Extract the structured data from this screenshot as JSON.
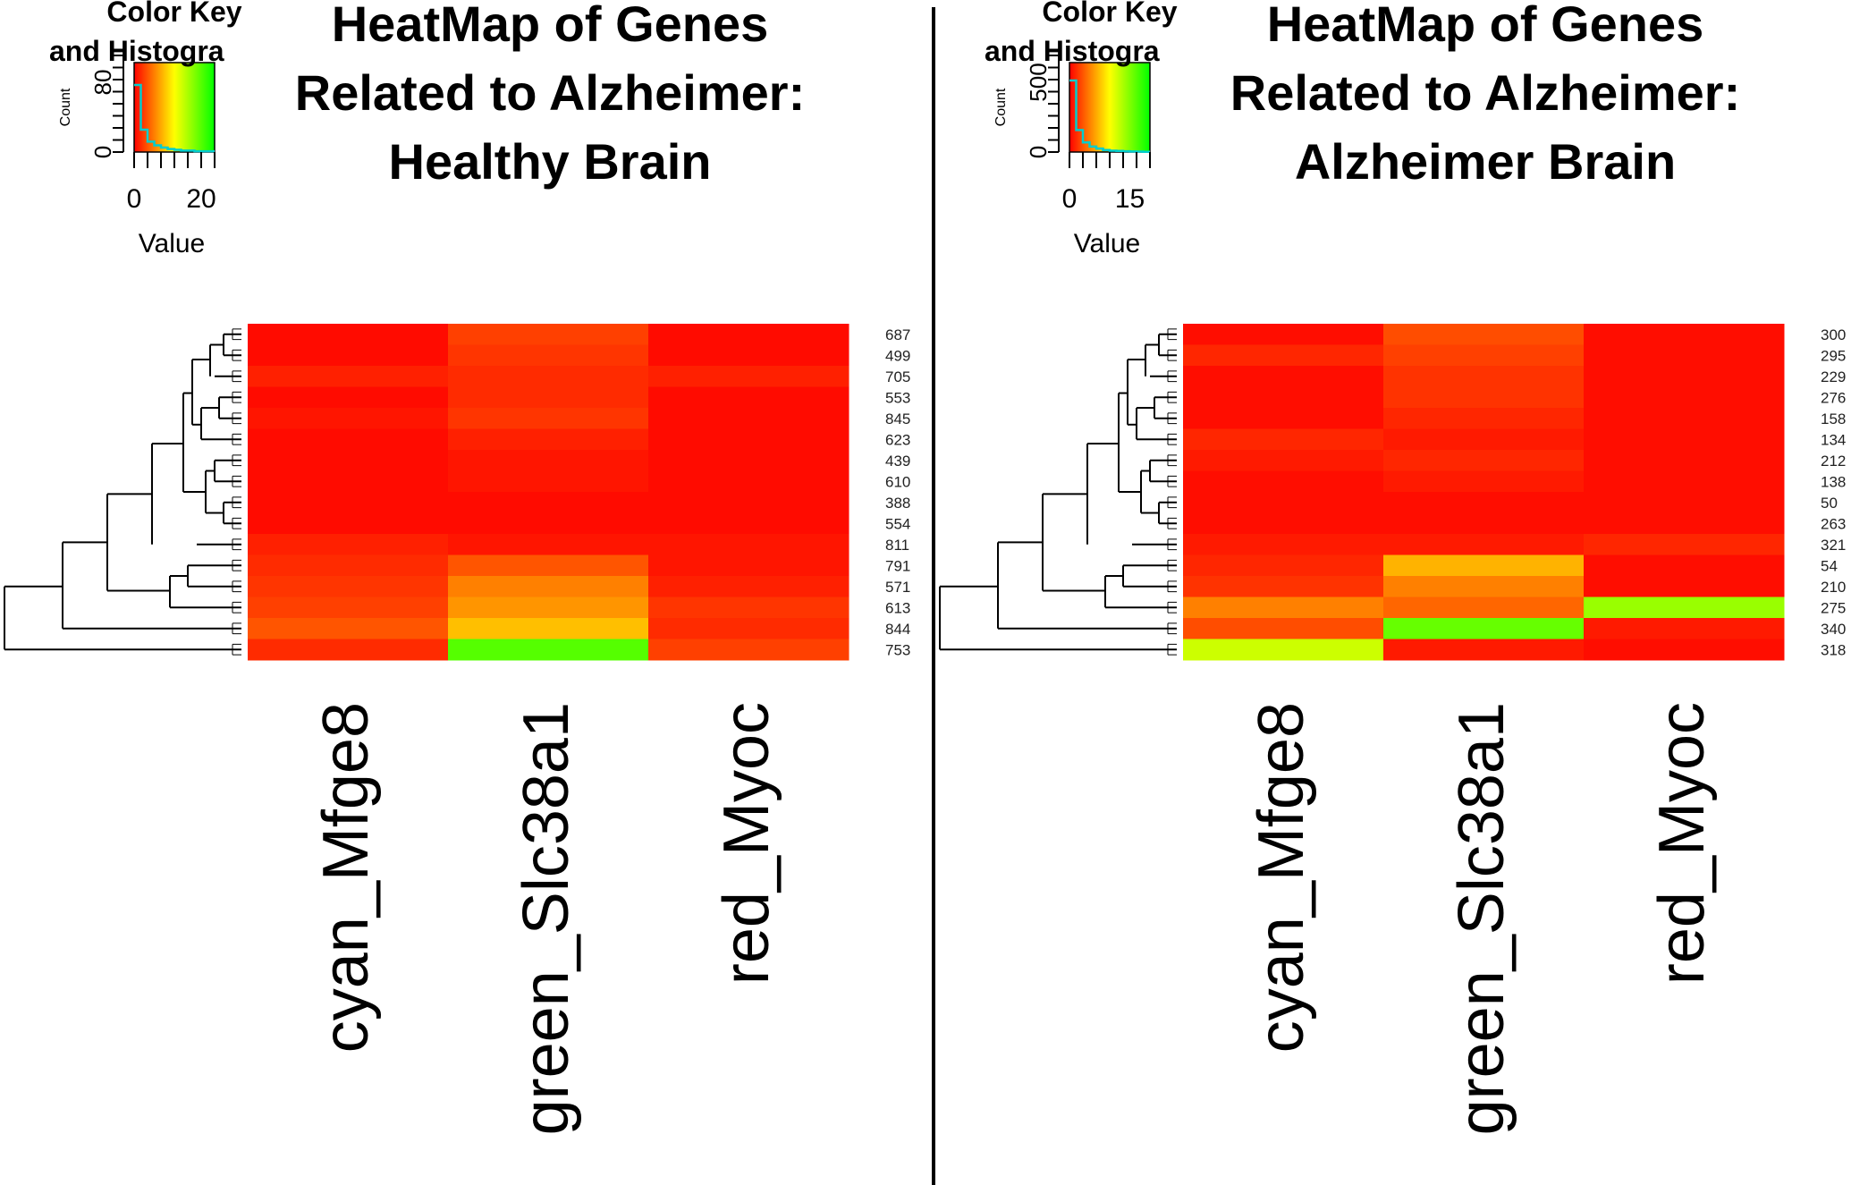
{
  "colors": {
    "low": "#ff0000",
    "mid": "#ffff00",
    "high": "#00ff00",
    "hist": "#00cdcd",
    "divider": "#000000"
  },
  "panels": [
    {
      "color_key": {
        "title_line1": "Color Key",
        "title_line2": "and Histogra",
        "count_label": "Count",
        "y_ticks": [
          "0",
          "80"
        ],
        "x_ticks": [
          "0",
          "20"
        ],
        "x_tick_values": [
          0,
          20
        ],
        "value_label": "Value",
        "value_range": [
          0,
          24
        ],
        "hist_counts": [
          90,
          30,
          14,
          9,
          6,
          4,
          3,
          2,
          2,
          1,
          1,
          1
        ],
        "count_max": 120
      },
      "title": [
        "HeatMap of Genes",
        "Related to Alzheimer:",
        "Healthy Brain"
      ],
      "columns": [
        "cyan_Mfge8",
        "green_Slc38a1",
        "red_Myoc"
      ],
      "row_labels": [
        "687",
        "499",
        "705",
        "553",
        "845",
        "623",
        "439",
        "610",
        "388",
        "554",
        "811",
        "791",
        "571",
        "613",
        "844",
        "753"
      ]
    },
    {
      "color_key": {
        "title_line1": "Color Key",
        "title_line2": "and Histogra",
        "count_label": "Count",
        "y_ticks": [
          "0",
          "500"
        ],
        "x_ticks": [
          "0",
          "15"
        ],
        "x_tick_values": [
          0,
          15
        ],
        "value_label": "Value",
        "value_range": [
          0,
          20
        ],
        "hist_counts": [
          520,
          160,
          70,
          40,
          25,
          15,
          10,
          8,
          6,
          4,
          3,
          2
        ],
        "count_max": 650
      },
      "title": [
        "HeatMap of Genes",
        "Related to Alzheimer:",
        "Alzheimer Brain"
      ],
      "columns": [
        "cyan_Mfge8",
        "green_Slc38a1",
        "red_Myoc"
      ],
      "row_labels": [
        "300",
        "295",
        "229",
        "276",
        "158",
        "134",
        "212",
        "138",
        "50",
        "263",
        "321",
        "54",
        "210",
        "275",
        "340",
        "318"
      ]
    }
  ],
  "chart_data": [
    {
      "type": "heatmap",
      "title": "HeatMap of Genes Related to Alzheimer: Healthy Brain",
      "columns": [
        "cyan_Mfge8",
        "green_Slc38a1",
        "red_Myoc"
      ],
      "row_labels": [
        "687",
        "499",
        "705",
        "553",
        "845",
        "623",
        "439",
        "610",
        "388",
        "554",
        "811",
        "791",
        "571",
        "613",
        "844",
        "753"
      ],
      "value_range": [
        0,
        24
      ],
      "values": [
        [
          0.5,
          3.0,
          0.5
        ],
        [
          0.5,
          2.5,
          0.5
        ],
        [
          1.5,
          2.0,
          1.5
        ],
        [
          0.5,
          2.0,
          0.5
        ],
        [
          1.0,
          2.5,
          0.5
        ],
        [
          0.5,
          1.5,
          0.5
        ],
        [
          0.5,
          1.0,
          0.5
        ],
        [
          0.5,
          1.0,
          0.5
        ],
        [
          0.5,
          0.5,
          0.5
        ],
        [
          0.5,
          0.5,
          0.5
        ],
        [
          1.5,
          1.0,
          1.0
        ],
        [
          2.0,
          4.0,
          1.0
        ],
        [
          2.5,
          6.0,
          1.5
        ],
        [
          3.0,
          7.0,
          2.5
        ],
        [
          4.0,
          9.0,
          2.0
        ],
        [
          2.0,
          20.0,
          3.0
        ]
      ]
    },
    {
      "type": "heatmap",
      "title": "HeatMap of Genes Related to Alzheimer: Alzheimer Brain",
      "columns": [
        "cyan_Mfge8",
        "green_Slc38a1",
        "red_Myoc"
      ],
      "row_labels": [
        "300",
        "295",
        "229",
        "276",
        "158",
        "134",
        "212",
        "138",
        "50",
        "263",
        "321",
        "54",
        "210",
        "275",
        "340",
        "318"
      ],
      "value_range": [
        0,
        20
      ],
      "values": [
        [
          0.5,
          3.0,
          0.5
        ],
        [
          1.5,
          2.5,
          0.5
        ],
        [
          0.5,
          2.0,
          0.5
        ],
        [
          0.5,
          2.0,
          0.5
        ],
        [
          0.5,
          1.5,
          0.5
        ],
        [
          1.5,
          1.0,
          0.5
        ],
        [
          1.0,
          1.5,
          0.5
        ],
        [
          0.5,
          1.0,
          0.5
        ],
        [
          0.5,
          0.5,
          0.5
        ],
        [
          0.5,
          0.5,
          0.5
        ],
        [
          1.0,
          1.0,
          1.5
        ],
        [
          1.5,
          7.0,
          0.5
        ],
        [
          2.0,
          5.0,
          0.5
        ],
        [
          5.0,
          4.0,
          14.0
        ],
        [
          3.0,
          16.0,
          1.0
        ],
        [
          12.0,
          1.0,
          0.5
        ]
      ]
    }
  ]
}
